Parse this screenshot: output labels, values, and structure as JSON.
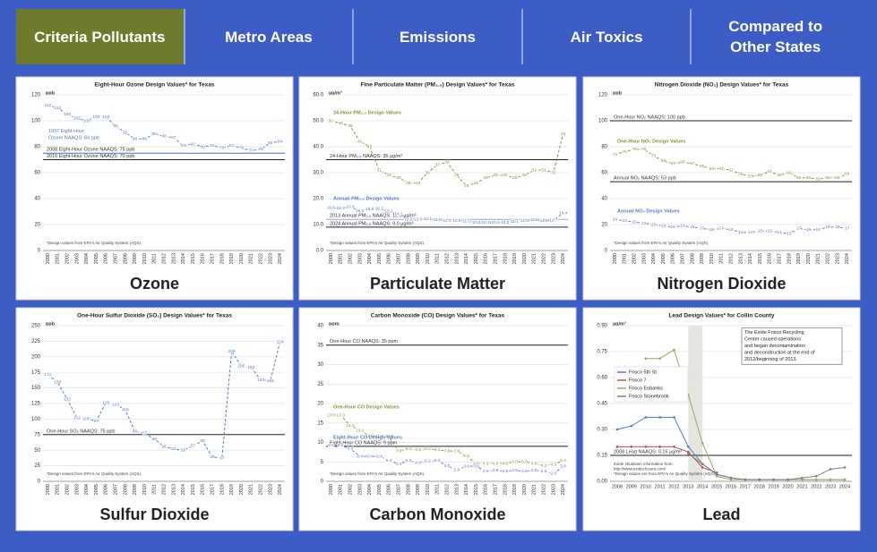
{
  "tabs": [
    "Criteria Pollutants",
    "Metro Areas",
    "Emissions",
    "Air Toxics",
    "Compared to Other States"
  ],
  "chart_data": [
    {
      "type": "line",
      "title": "Eight-Hour Ozone Design Values* for Texas",
      "caption": "Ozone",
      "unit": "ppb",
      "categories": [
        "2000",
        "2001",
        "2002",
        "2003",
        "2004",
        "2005",
        "2006",
        "2007",
        "2008",
        "2009",
        "2010",
        "2011",
        "2012",
        "2013",
        "2014",
        "2015",
        "2016",
        "2017",
        "2018",
        "2019",
        "2020",
        "2021",
        "2022",
        "2023",
        "2024"
      ],
      "ylim": [
        0,
        120
      ],
      "yticks": [
        0,
        20,
        40,
        60,
        80,
        100,
        120
      ],
      "grid": true,
      "data_labels": true,
      "series": [
        {
          "color": "#5b7bc0",
          "values": [
            112,
            110,
            105,
            102,
            100,
            103,
            103,
            96,
            91,
            86,
            86,
            90,
            88,
            87,
            81,
            82,
            80,
            81,
            79,
            81,
            79,
            77,
            78,
            83,
            84
          ]
        }
      ],
      "reference_lines": [
        {
          "value": 75,
          "label": "2008 Eight-Hour Ozone NAAQS: 75 ppb",
          "color": "#4f6fb8"
        },
        {
          "value": 70,
          "label": "2015 Eight-Hour Ozone NAAQS: 70 ppb",
          "color": "#222222"
        }
      ],
      "annotation": [
        "1997 Eight-Hour",
        "Ozone NAAQS: 84 ppb"
      ],
      "notes": [
        "*Design values from EPA's Air Quality System (AQS)."
      ]
    },
    {
      "type": "line",
      "title": "Fine Particulate Matter (PM₂.₅) Design Values* for Texas",
      "caption": "Particulate Matter",
      "unit": "µg/m³",
      "categories": [
        "2000",
        "2001",
        "2002",
        "2003",
        "2004",
        "2005",
        "2006",
        "2007",
        "2008",
        "2009",
        "2010",
        "2011",
        "2012",
        "2013",
        "2014",
        "2015",
        "2016",
        "2017",
        "2018",
        "2019",
        "2020",
        "2021",
        "2022",
        "2023",
        "2024"
      ],
      "ylim": [
        0,
        60
      ],
      "yticks": [
        {
          "value": 0,
          "label": "0.0"
        },
        {
          "value": 10,
          "label": "10.0"
        },
        {
          "value": 20,
          "label": "20.0"
        },
        {
          "value": 30,
          "label": "30.0"
        },
        {
          "value": 40,
          "label": "40.0"
        },
        {
          "value": 50,
          "label": "50.0"
        },
        {
          "value": 60,
          "label": "60.0"
        }
      ],
      "grid": true,
      "data_labels": true,
      "series": [
        {
          "name": "24-Hour PM₂.₅ Design Values",
          "color": "#8b8f3a",
          "values": [
            50,
            49,
            48,
            42,
            40,
            31,
            29,
            28,
            26,
            26,
            30,
            33,
            34,
            29,
            25,
            26,
            28,
            29,
            29,
            28,
            29,
            31,
            31,
            30,
            45
          ]
        },
        {
          "name": "Annual PM₂.₅ Design Values",
          "color": "#5b7bc0",
          "values": [
            16.5,
            16.3,
            16.8,
            15.2,
            15.9,
            16.2,
            15.1,
            14.1,
            12.0,
            12.0,
            12.1,
            11.8,
            11.4,
            11.5,
            11.3,
            10.8,
            10.7,
            10.8,
            10.8,
            11.1,
            11.4,
            11.8,
            11.5,
            11.7,
            14.4
          ],
          "value_labels": [
            "16.5",
            "16.3",
            "16.8",
            "15.2",
            "15.9",
            "16.2",
            "15.1",
            "14.1",
            "12.0",
            "12.0",
            "12.1",
            "11.8",
            "11.4",
            "11.5",
            "11.3",
            "10.8",
            "10.7",
            "10.8",
            "10.8",
            "11.1",
            "11.4",
            "11.8",
            "11.5",
            "11.7",
            "14.4"
          ]
        }
      ],
      "reference_lines": [
        {
          "value": 35,
          "label": "24-Hour PM₂.₅ NAAQS: 35 µg/m³",
          "color": "#222222"
        },
        {
          "value": 12,
          "label": "2013 Annual PM₂.₅ NAAQS: 12.0 µg/m³",
          "color": "#9aa8cc"
        },
        {
          "value": 9,
          "label": "2024 Annual PM₂.₅ NAAQS: 9.0 µg/m³",
          "color": "#222222"
        }
      ],
      "notes": [
        "*Design values from EPA's Air Quality System (AQS)."
      ]
    },
    {
      "type": "line",
      "title": "Nitrogen Dioxide (NO₂) Design Values* for Texas",
      "caption": "Nitrogen Dioxide",
      "unit": "ppb",
      "categories": [
        "2000",
        "2001",
        "2002",
        "2003",
        "2004",
        "2005",
        "2006",
        "2007",
        "2008",
        "2009",
        "2010",
        "2011",
        "2012",
        "2013",
        "2014",
        "2015",
        "2016",
        "2017",
        "2018",
        "2019",
        "2020",
        "2021",
        "2022",
        "2023",
        "2024"
      ],
      "ylim": [
        0,
        120
      ],
      "yticks": [
        0,
        20,
        40,
        60,
        80,
        100,
        120
      ],
      "grid": true,
      "data_labels": true,
      "series": [
        {
          "name": "One-Hour NO₂ Design Values",
          "color": "#8b8f3a",
          "values": [
            74,
            76,
            78,
            78,
            73,
            69,
            67,
            68,
            67,
            65,
            63,
            63,
            62,
            59,
            57,
            58,
            61,
            58,
            60,
            56,
            56,
            55,
            56,
            56,
            59
          ]
        },
        {
          "name": "Annual NO₂ Design Values",
          "color": "#5b7bc0",
          "values": [
            24,
            23,
            22,
            21,
            20,
            19,
            18,
            19,
            18,
            17,
            16,
            17,
            16,
            14,
            14,
            15,
            15,
            14,
            13,
            17,
            16,
            16,
            18,
            18,
            17
          ]
        }
      ],
      "reference_lines": [
        {
          "value": 100,
          "label": "One-Hour NO₂ NAAQS: 100 ppb",
          "color": "#222222"
        },
        {
          "value": 53,
          "label": "Annual NO₂ NAAQS: 53 ppb",
          "color": "#222222"
        }
      ],
      "notes": [
        "*Design values from EPA's Air Quality System (AQS)."
      ]
    },
    {
      "type": "line",
      "title": "One-Hour Sulfur Dioxide (SO₂) Design Values* for Texas",
      "caption": "Sulfur Dioxide",
      "unit": "ppb",
      "categories": [
        "2000",
        "2001",
        "2002",
        "2003",
        "2004",
        "2005",
        "2006",
        "2007",
        "2008",
        "2009",
        "2010",
        "2011",
        "2012",
        "2013",
        "2014",
        "2015",
        "2016",
        "2017",
        "2018",
        "2019",
        "2020",
        "2021",
        "2022",
        "2023",
        "2024"
      ],
      "ylim": [
        0,
        250
      ],
      "yticks": [
        0,
        25,
        50,
        75,
        100,
        125,
        150,
        175,
        200,
        225,
        250
      ],
      "grid": true,
      "data_labels": true,
      "series": [
        {
          "color": "#5b7bc0",
          "values": [
            171,
            159,
            132,
            102,
            100,
            97,
            126,
            123,
            115,
            80,
            77,
            68,
            56,
            52,
            50,
            57,
            65,
            39,
            37,
            209,
            185,
            183,
            163,
            161,
            224
          ]
        }
      ],
      "reference_lines": [
        {
          "value": 75,
          "label": "One-Hour SO₂ NAAQS: 75 ppb",
          "color": "#222222"
        }
      ],
      "notes": [
        "*Design values from EPA's Air Quality System (AQS)."
      ]
    },
    {
      "type": "line",
      "title": "Carbon Monoxide (CO) Design Values* for Texas",
      "caption": "Carbon Monoxide",
      "unit": "ppm",
      "categories": [
        "2000",
        "2001",
        "2002",
        "2003",
        "2004",
        "2005",
        "2006",
        "2007",
        "2008",
        "2009",
        "2010",
        "2011",
        "2012",
        "2013",
        "2014",
        "2015",
        "2016",
        "2017",
        "2018",
        "2019",
        "2020",
        "2021",
        "2022",
        "2023",
        "2024"
      ],
      "ylim": [
        0,
        40
      ],
      "yticks": [
        0,
        5,
        10,
        15,
        20,
        25,
        30,
        35,
        40
      ],
      "grid": true,
      "data_labels": true,
      "series": [
        {
          "name": "One-Hour CO Design Values",
          "color": "#8b8f3a",
          "values": [
            17.0,
            17.0,
            14.3,
            13.1,
            11.7,
            11.5,
            11.5,
            7.8,
            8.3,
            8.1,
            8.3,
            8.1,
            7.8,
            7.8,
            6.5,
            4.6,
            4.6,
            4.6,
            4.6,
            5.0,
            5.0,
            4.6,
            4.1,
            4.3,
            5.3
          ],
          "value_labels": [
            "17.0",
            "17.0",
            "14.3",
            "13.1",
            "11.7",
            "11.5",
            "11.5",
            "7.8",
            "8.3",
            "8.1",
            "8.3",
            "8.1",
            "7.8",
            "7.8",
            "6.5",
            "4.6",
            "4.6",
            "4.6",
            "4.6",
            "5.0",
            "5.0",
            "4.6",
            "4.1",
            "4.3",
            "5.3"
          ]
        },
        {
          "name": "Eight-Hour CO Design Values",
          "color": "#5b7bc0",
          "values": [
            9.2,
            9.2,
            8.4,
            6.4,
            6.4,
            6.4,
            5.4,
            4.4,
            5.3,
            4.8,
            5.2,
            5.3,
            4.0,
            2.9,
            3.9,
            3.9,
            2.6,
            2.8,
            2.6,
            2.8,
            2.6,
            2.8,
            2.6,
            2.0,
            3.8
          ],
          "value_labels": [
            "9.2",
            "9.2",
            "8.4",
            "6.4",
            "6.4",
            "6.4",
            "5.4",
            "4.4",
            "5.3",
            "4.8",
            "5.2",
            "5.3",
            "4.0",
            "2.9",
            "3.9",
            "3.9",
            "2.6",
            "2.8",
            "2.6",
            "2.8",
            "2.6",
            "2.8",
            "2.6",
            "2.0",
            "3.8"
          ]
        }
      ],
      "reference_lines": [
        {
          "value": 35,
          "label": "One-Hour CO NAAQS: 35 ppm",
          "color": "#222222"
        },
        {
          "value": 9,
          "label": "Eight-Hour CO NAAQS: 9 ppm",
          "color": "#222222"
        }
      ],
      "notes": [
        "*Design values from EPA's Air Quality System (AQS)."
      ]
    },
    {
      "type": "line",
      "title": "Lead Design Values* for Collin County",
      "caption": "Lead",
      "unit": "µg/m³",
      "categories": [
        "2008",
        "2009",
        "2010",
        "2011",
        "2012",
        "2013",
        "2014",
        "2015",
        "2016",
        "2017",
        "2018",
        "2019",
        "2020",
        "2021",
        "2022",
        "2023",
        "2024"
      ],
      "ylim": [
        0,
        0.9
      ],
      "yticks": [
        {
          "value": 0,
          "label": "0.00"
        },
        0.15,
        {
          "value": 0.3,
          "label": "0.30"
        },
        0.45,
        {
          "value": 0.6,
          "label": "0.60"
        },
        0.75,
        {
          "value": 0.9,
          "label": "0.90"
        }
      ],
      "grid": true,
      "legend": "upper left",
      "series": [
        {
          "name": "Frisco 5th St",
          "color": "#5b7bc0",
          "values": [
            0.3,
            0.32,
            0.37,
            0.37,
            0.37,
            0.2,
            0.1,
            0.04,
            0.02,
            0.01,
            0.01,
            0.01,
            0.01,
            0.01,
            0.01,
            0.01,
            0.01
          ]
        },
        {
          "name": "Frisco 7",
          "color": "#c0504d",
          "values": [
            0.2,
            0.2,
            0.2,
            0.2,
            0.2,
            0.17,
            0.08,
            0.05,
            null,
            null,
            null,
            null,
            null,
            null,
            null,
            null,
            null
          ]
        },
        {
          "name": "Frisco Eubanks",
          "color": "#9ea66a",
          "values": [
            null,
            null,
            0.71,
            0.71,
            0.76,
            0.5,
            0.22,
            0.03,
            0.01,
            0.01,
            0.01,
            0.01,
            0.01,
            0.01,
            0.01,
            0.01,
            0.01
          ]
        },
        {
          "name": "Frisco Stonebrook",
          "color": "#7f7f7f",
          "values": [
            null,
            null,
            null,
            null,
            null,
            0.16,
            0.1,
            0.04,
            0.02,
            0.01,
            0.01,
            0.01,
            0.01,
            0.02,
            0.03,
            0.07,
            0.08
          ]
        }
      ],
      "shade": [
        2013,
        2014
      ],
      "reference_lines": [
        {
          "value": 0.15,
          "label": "2008 Lead NAAQS: 0.15 µg/m³",
          "color": "#222222"
        }
      ],
      "annotation": [
        "The Exide Frisco Recycling",
        "Center caused operations",
        "and began decontamination",
        "and deconstruction at the end of",
        "2012/beginning of 2013."
      ],
      "notes": [
        "Exide shutdown information from:",
        "http://www.exideclosure.com/",
        "*Design values are from EPA's Air Quality System (AQS)."
      ]
    }
  ]
}
